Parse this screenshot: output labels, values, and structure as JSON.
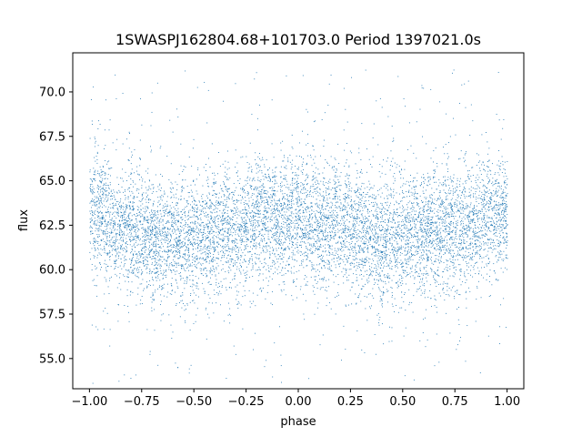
{
  "chart_data": {
    "type": "scatter",
    "title": "1SWASPJ162804.68+101703.0 Period 1397021.0s",
    "xlabel": "phase",
    "ylabel": "flux",
    "xlim": [
      -1.08,
      1.08
    ],
    "ylim": [
      53.3,
      72.2
    ],
    "x_ticks": [
      -1.0,
      -0.75,
      -0.5,
      -0.25,
      0.0,
      0.25,
      0.5,
      0.75,
      1.0
    ],
    "x_tick_labels": [
      "−1.00",
      "−0.75",
      "−0.50",
      "−0.25",
      "0.00",
      "0.25",
      "0.50",
      "0.75",
      "1.00"
    ],
    "y_ticks": [
      55.0,
      57.5,
      60.0,
      62.5,
      65.0,
      67.5,
      70.0
    ],
    "y_tick_labels": [
      "55.0",
      "57.5",
      "60.0",
      "62.5",
      "65.0",
      "67.5",
      "70.0"
    ],
    "grid": false,
    "legend": "none",
    "marker_color": "#1f77b4",
    "series": [
      {
        "x_range": [
          -1.0,
          1.0
        ],
        "y_range": [
          53.6,
          71.3
        ],
        "typical_y_range": [
          59.5,
          66.0
        ],
        "central_trend": [
          [
            -1.0,
            63.2
          ],
          [
            -0.95,
            63.4
          ],
          [
            -0.9,
            62.6
          ],
          [
            -0.85,
            62.4
          ],
          [
            -0.8,
            62.2
          ],
          [
            -0.75,
            62.0
          ],
          [
            -0.7,
            61.8
          ],
          [
            -0.65,
            62.0
          ],
          [
            -0.6,
            61.9
          ],
          [
            -0.55,
            61.6
          ],
          [
            -0.5,
            61.8
          ],
          [
            -0.45,
            62.0
          ],
          [
            -0.4,
            62.5
          ],
          [
            -0.35,
            62.3
          ],
          [
            -0.3,
            62.0
          ],
          [
            -0.25,
            62.4
          ],
          [
            -0.2,
            62.8
          ],
          [
            -0.15,
            63.0
          ],
          [
            -0.1,
            62.6
          ],
          [
            -0.05,
            62.8
          ],
          [
            0.0,
            63.2
          ],
          [
            0.05,
            62.8
          ],
          [
            0.1,
            62.4
          ],
          [
            0.15,
            62.5
          ],
          [
            0.2,
            62.6
          ],
          [
            0.25,
            62.3
          ],
          [
            0.3,
            62.0
          ],
          [
            0.35,
            61.8
          ],
          [
            0.4,
            61.6
          ],
          [
            0.45,
            61.9
          ],
          [
            0.5,
            62.0
          ],
          [
            0.55,
            62.2
          ],
          [
            0.6,
            62.0
          ],
          [
            0.65,
            62.2
          ],
          [
            0.7,
            62.3
          ],
          [
            0.75,
            62.2
          ],
          [
            0.8,
            62.4
          ],
          [
            0.85,
            62.7
          ],
          [
            0.9,
            63.0
          ],
          [
            0.95,
            63.3
          ],
          [
            1.0,
            63.2
          ]
        ]
      }
    ]
  }
}
